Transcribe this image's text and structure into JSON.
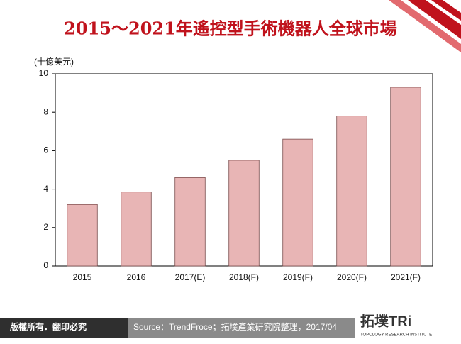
{
  "chart_data": {
    "type": "bar",
    "title": "2015～2021年遙控型手術機器人全球市場",
    "y_label": "(十億美元)",
    "categories": [
      "2015",
      "2016",
      "2017(E)",
      "2018(F)",
      "2019(F)",
      "2020(F)",
      "2021(F)"
    ],
    "values": [
      3.2,
      3.85,
      4.6,
      5.5,
      6.6,
      7.8,
      9.3
    ],
    "color": "#e8b5b5",
    "ylim": [
      0,
      10
    ],
    "yticks": [
      0,
      2,
      4,
      6,
      8,
      10
    ],
    "grid": false
  },
  "footer": {
    "copyright": "版權所有．翻印必究",
    "source": "Source：TrendFroce；拓墣產業研究院整理，2017/04",
    "logo": "拓墣TRi",
    "logo_subtitle": "TOPOLOGY RESEARCH INSTITUTE"
  }
}
